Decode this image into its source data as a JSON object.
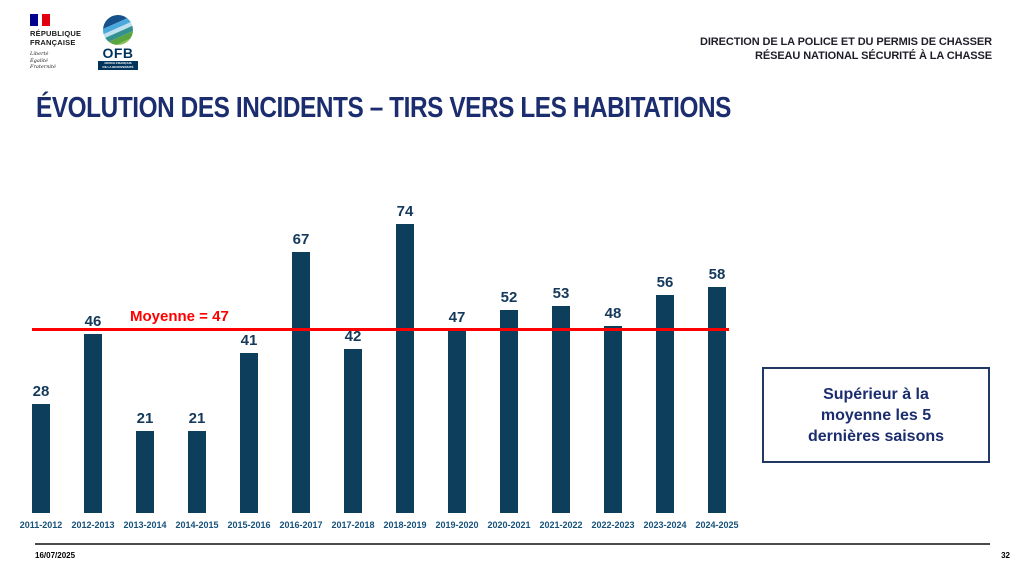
{
  "header": {
    "rf_logo": {
      "name_lines": [
        "RÉPUBLIQUE",
        "FRANÇAISE"
      ],
      "motto_lines": [
        "Liberté",
        "Égalité",
        "Fraternité"
      ]
    },
    "ofb_logo": {
      "acronym": "OFB",
      "sub_lines": [
        "OFFICE FRANÇAIS",
        "DE LA BIODIVERSITÉ"
      ]
    },
    "right_lines": [
      "DIRECTION DE LA POLICE ET DU PERMIS DE CHASSER",
      "RÉSEAU NATIONAL SÉCURITÉ À LA CHASSE"
    ]
  },
  "title": "ÉVOLUTION DES INCIDENTS – TIRS VERS LES HABITATIONS",
  "chart_data": {
    "type": "bar",
    "title": "ÉVOLUTION DES INCIDENTS – TIRS VERS LES HABITATIONS",
    "categories": [
      "2011-2012",
      "2012-2013",
      "2013-2014",
      "2014-2015",
      "2015-2016",
      "2016-2017",
      "2017-2018",
      "2018-2019",
      "2019-2020",
      "2020-2021",
      "2021-2022",
      "2022-2023",
      "2023-2024",
      "2024-2025"
    ],
    "values": [
      28,
      46,
      21,
      21,
      41,
      67,
      42,
      74,
      47,
      52,
      53,
      48,
      56,
      58
    ],
    "xlabel": "",
    "ylabel": "",
    "ylim": [
      0,
      80
    ],
    "grid": false,
    "legend": "none",
    "bar_color": "#0d3f5c",
    "value_label_color": "#14395a",
    "axis_label_color": "#17527a",
    "mean_line": {
      "value": 47,
      "label": "Moyenne = 47",
      "color": "#fe0000"
    }
  },
  "annotation_box": {
    "lines": [
      "Supérieur à la",
      "moyenne les 5",
      "dernières saisons"
    ],
    "border_color": "#1f3864"
  },
  "footer": {
    "date": "16/07/2025",
    "page": "32"
  }
}
